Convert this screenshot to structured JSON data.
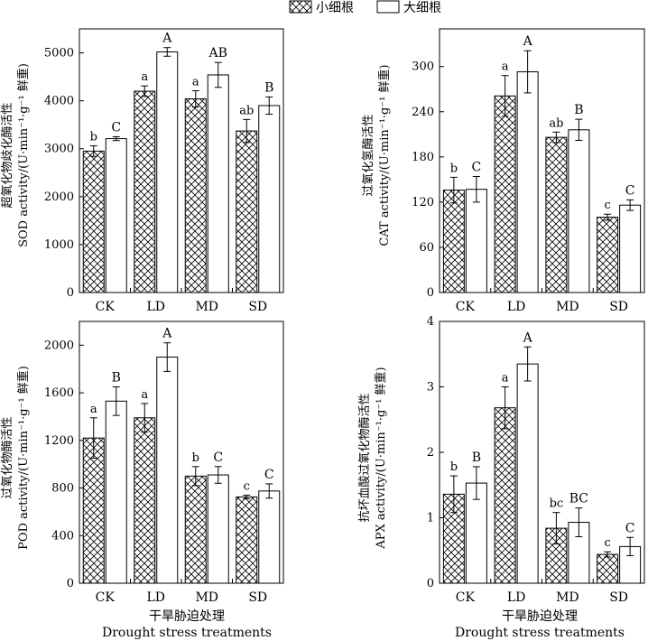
{
  "legend": {
    "series1": "小细根",
    "series2": "大细根"
  },
  "xlabel_zh": "干旱胁迫处理",
  "xlabel_en": "Drought stress treatments",
  "chart_data": [
    {
      "type": "bar",
      "categories": [
        "CK",
        "LD",
        "MD",
        "SD"
      ],
      "ylabel_zh": "超氧化物歧化酶活性",
      "ylabel_en": "SOD activity/(U·min⁻¹·g⁻¹ 鲜重)",
      "ylim": [
        0,
        5500
      ],
      "yticks": [
        0,
        1000,
        2000,
        3000,
        4000,
        5000
      ],
      "series": [
        {
          "name": "小细根",
          "values": [
            2950,
            4200,
            4040,
            3370
          ],
          "errors": [
            110,
            110,
            170,
            240
          ],
          "letters": [
            "b",
            "a",
            "a",
            "ab"
          ]
        },
        {
          "name": "大细根",
          "values": [
            3210,
            5020,
            4540,
            3900
          ],
          "errors": [
            40,
            90,
            260,
            180
          ],
          "letters": [
            "C",
            "A",
            "AB",
            "B"
          ]
        }
      ]
    },
    {
      "type": "bar",
      "categories": [
        "CK",
        "LD",
        "MD",
        "SD"
      ],
      "ylabel_zh": "过氧化氢酶活性",
      "ylabel_en": "CAT activity/(U·min⁻¹·g⁻¹ 鲜重)",
      "ylim": [
        0,
        350
      ],
      "yticks": [
        0,
        60,
        120,
        180,
        240,
        300
      ],
      "series": [
        {
          "name": "小细根",
          "values": [
            136,
            261,
            206,
            100
          ],
          "errors": [
            17,
            27,
            7,
            4
          ],
          "letters": [
            "b",
            "a",
            "ab",
            "c"
          ]
        },
        {
          "name": "大细根",
          "values": [
            137,
            293,
            216,
            116
          ],
          "errors": [
            17,
            28,
            14,
            7
          ],
          "letters": [
            "C",
            "A",
            "B",
            "C"
          ]
        }
      ]
    },
    {
      "type": "bar",
      "categories": [
        "CK",
        "LD",
        "MD",
        "SD"
      ],
      "ylabel_zh": "过氧化物酶活性",
      "ylabel_en": "POD activity/(U·min⁻¹·g⁻¹ 鲜重)",
      "ylim": [
        0,
        2200
      ],
      "yticks": [
        0,
        400,
        800,
        1200,
        1600,
        2000
      ],
      "series": [
        {
          "name": "小细根",
          "values": [
            1220,
            1390,
            900,
            725
          ],
          "errors": [
            170,
            120,
            80,
            15
          ],
          "letters": [
            "a",
            "a",
            "b",
            "c"
          ]
        },
        {
          "name": "大细根",
          "values": [
            1530,
            1900,
            910,
            775
          ],
          "errors": [
            120,
            120,
            70,
            60
          ],
          "letters": [
            "B",
            "A",
            "C",
            "C"
          ]
        }
      ]
    },
    {
      "type": "bar",
      "categories": [
        "CK",
        "LD",
        "MD",
        "SD"
      ],
      "ylabel_zh": "抗坏血酸过氧化物酶活性",
      "ylabel_en": "APX activity/(U·min⁻¹·g⁻¹ 鲜重)",
      "ylim": [
        0,
        4
      ],
      "yticks": [
        0,
        1,
        2,
        3,
        4
      ],
      "series": [
        {
          "name": "小细根",
          "values": [
            1.36,
            2.68,
            0.84,
            0.44
          ],
          "errors": [
            0.28,
            0.32,
            0.24,
            0.04
          ],
          "letters": [
            "b",
            "a",
            "bc",
            "c"
          ]
        },
        {
          "name": "大细根",
          "values": [
            1.53,
            3.35,
            0.93,
            0.56
          ],
          "errors": [
            0.25,
            0.26,
            0.22,
            0.14
          ],
          "letters": [
            "B",
            "A",
            "BC",
            "C"
          ]
        }
      ]
    }
  ]
}
